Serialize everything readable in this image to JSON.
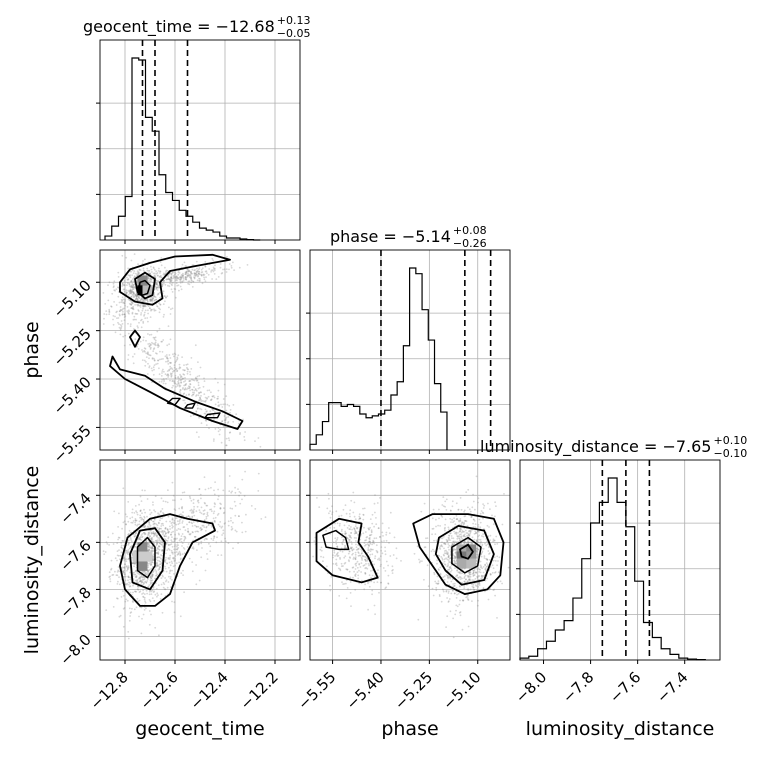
{
  "chart_data": {
    "type": "corner",
    "parameters": [
      {
        "name": "geocent_time",
        "title_text": "geocent_time = −12.68",
        "title_sup": "+0.13",
        "title_sub": "−0.05",
        "median": -12.68,
        "q_lo": -12.73,
        "q_hi": -12.55,
        "ticks": [
          -12.8,
          -12.6,
          -12.4,
          -12.2
        ],
        "tick_labels": [
          "−12.8",
          "−12.6",
          "−12.4",
          "−12.2"
        ]
      },
      {
        "name": "phase",
        "title_text": "phase = −5.14",
        "title_sup": "+0.08",
        "title_sub": "−0.26",
        "median": -5.14,
        "q_lo": -5.4,
        "q_hi": -5.06,
        "ticks": [
          -5.55,
          -5.4,
          -5.25,
          -5.1
        ],
        "tick_labels": [
          "−5.55",
          "−5.40",
          "−5.25",
          "−5.10"
        ]
      },
      {
        "name": "luminosity_distance",
        "title_text": "luminosity_distance = −7.65",
        "title_sup": "+0.10",
        "title_sub": "−0.10",
        "median": -7.65,
        "q_lo": -7.75,
        "q_hi": -7.55,
        "ticks": [
          -8.0,
          -7.8,
          -7.6,
          -7.4
        ],
        "tick_labels": [
          "−8.0",
          "−7.8",
          "−7.6",
          "−7.4"
        ]
      }
    ],
    "histograms": [
      {
        "param": "geocent_time",
        "bin_edges_start": -12.88,
        "bin_width": 0.027,
        "counts": [
          0.02,
          0.07,
          0.12,
          0.22,
          0.92,
          0.91,
          0.62,
          0.55,
          0.33,
          0.24,
          0.2,
          0.15,
          0.12,
          0.09,
          0.06,
          0.05,
          0.04,
          0.02,
          0.01,
          0.01,
          0.005,
          0.002,
          0.0
        ]
      },
      {
        "param": "phase",
        "bin_edges_start": -5.62,
        "bin_width": 0.0193,
        "counts": [
          0.03,
          0.08,
          0.15,
          0.25,
          0.25,
          0.23,
          0.24,
          0.23,
          0.19,
          0.17,
          0.18,
          0.19,
          0.21,
          0.29,
          0.36,
          0.55,
          0.96,
          0.93,
          0.74,
          0.58,
          0.35,
          0.2
        ]
      },
      {
        "param": "luminosity_distance",
        "bin_edges_start": -8.1,
        "bin_width": 0.0375,
        "counts": [
          0.01,
          0.02,
          0.06,
          0.1,
          0.16,
          0.21,
          0.33,
          0.54,
          0.73,
          0.84,
          0.97,
          0.84,
          0.71,
          0.42,
          0.2,
          0.12,
          0.06,
          0.03,
          0.01,
          0.005,
          0.002
        ]
      }
    ],
    "contour_panels": [
      {
        "x": "geocent_time",
        "y": "phase",
        "peak": [
          -12.73,
          -5.125
        ]
      },
      {
        "x": "geocent_time",
        "y": "luminosity_distance",
        "peak": [
          -12.73,
          -7.66
        ]
      },
      {
        "x": "phase",
        "y": "luminosity_distance",
        "peak": [
          -5.14,
          -7.65
        ]
      }
    ],
    "axis_labels": {
      "x": [
        "geocent_time",
        "phase",
        "luminosity_distance"
      ],
      "y": [
        "phase",
        "luminosity_distance"
      ]
    },
    "ranges": {
      "geocent_time": [
        -12.9,
        -12.1
      ],
      "phase": [
        -5.62,
        -5.0
      ],
      "luminosity_distance": [
        -8.1,
        -7.25
      ]
    },
    "grid": true,
    "colors": {
      "line": "#000000",
      "grid": "#b0b0b0",
      "scatter": "#8c8c8c"
    }
  }
}
